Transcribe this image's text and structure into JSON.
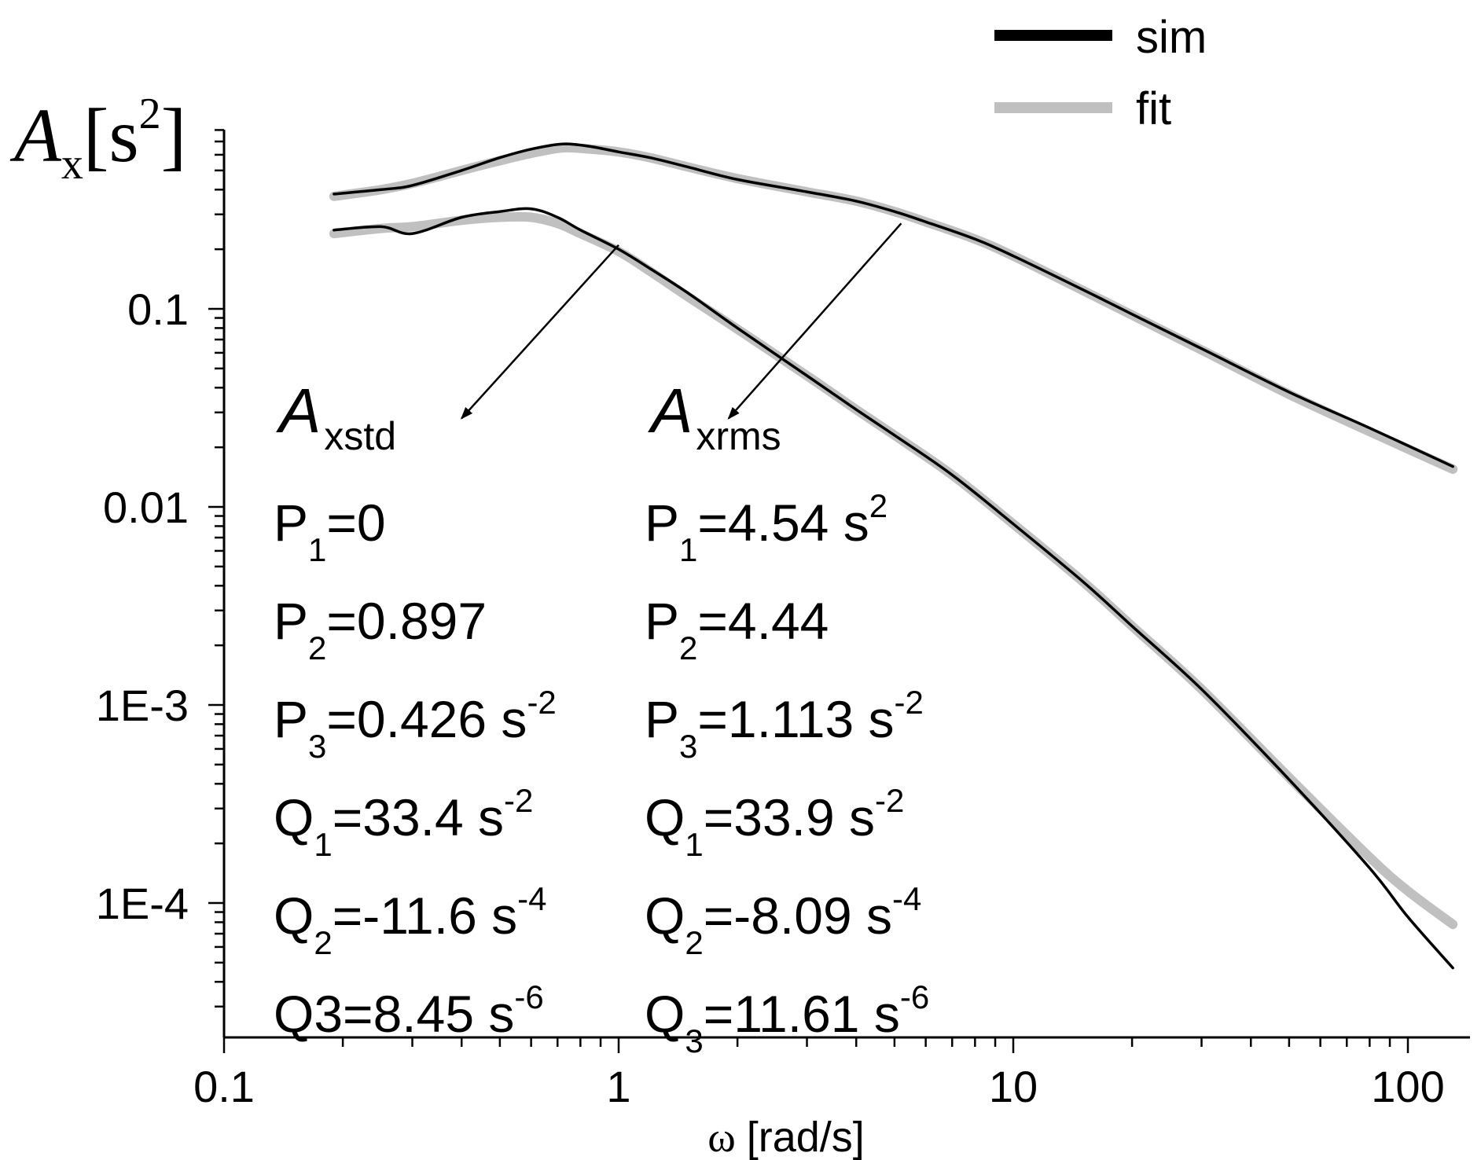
{
  "chart_data": {
    "type": "line",
    "x_scale": "log",
    "y_scale": "log",
    "xlim": [
      0.1,
      140
    ],
    "ylim": [
      2e-05,
      1.2
    ],
    "x_ticks": [
      {
        "value": 0.1,
        "label": "0.1"
      },
      {
        "value": 1,
        "label": "1"
      },
      {
        "value": 10,
        "label": "10"
      },
      {
        "value": 100,
        "label": "100"
      }
    ],
    "y_ticks": [
      {
        "value": 0.1,
        "label": "0.1"
      },
      {
        "value": 0.01,
        "label": "0.01"
      },
      {
        "value": 0.001,
        "label": "1E-3"
      },
      {
        "value": 0.0001,
        "label": "1E-4"
      }
    ],
    "xlabel": {
      "symbol": "ω",
      "text": "[rad/s]"
    },
    "ylabel": {
      "symbol": "A",
      "sub": "x",
      "open": "[s",
      "sup": "2",
      "close": "]"
    },
    "legend": {
      "position": "top-right",
      "entries": [
        {
          "name": "sim",
          "color": "#000000"
        },
        {
          "name": "fit",
          "color": "#c0c0c0"
        }
      ]
    },
    "series": [
      {
        "name": "Axrms sim",
        "kind": "sim",
        "color": "#000000",
        "x": [
          0.19,
          0.25,
          0.3,
          0.4,
          0.5,
          0.6,
          0.72,
          0.85,
          1,
          1.2,
          1.5,
          2,
          3,
          4,
          5,
          6,
          8,
          10,
          15,
          20,
          30,
          50,
          80,
          130
        ],
        "y": [
          0.38,
          0.4,
          0.42,
          0.5,
          0.58,
          0.64,
          0.68,
          0.66,
          0.62,
          0.58,
          0.52,
          0.45,
          0.39,
          0.35,
          0.31,
          0.275,
          0.225,
          0.185,
          0.125,
          0.094,
          0.063,
          0.038,
          0.025,
          0.016
        ]
      },
      {
        "name": "Axrms fit",
        "kind": "fit",
        "color": "#c0c0c0",
        "x": [
          0.19,
          0.25,
          0.3,
          0.4,
          0.5,
          0.6,
          0.72,
          0.85,
          1,
          1.2,
          1.5,
          2,
          3,
          4,
          5,
          6,
          8,
          10,
          15,
          20,
          30,
          50,
          80,
          130
        ],
        "y": [
          0.37,
          0.4,
          0.43,
          0.5,
          0.56,
          0.61,
          0.65,
          0.64,
          0.62,
          0.58,
          0.52,
          0.455,
          0.39,
          0.35,
          0.31,
          0.275,
          0.225,
          0.185,
          0.124,
          0.093,
          0.062,
          0.037,
          0.024,
          0.0155
        ]
      },
      {
        "name": "Axstd sim",
        "kind": "sim",
        "color": "#000000",
        "x": [
          0.19,
          0.25,
          0.3,
          0.4,
          0.5,
          0.6,
          0.7,
          0.8,
          1,
          1.2,
          1.5,
          2,
          3,
          4,
          5,
          7,
          10,
          15,
          20,
          30,
          50,
          80,
          100,
          130
        ],
        "y": [
          0.25,
          0.26,
          0.24,
          0.29,
          0.31,
          0.32,
          0.29,
          0.25,
          0.2,
          0.16,
          0.12,
          0.08,
          0.046,
          0.031,
          0.023,
          0.0145,
          0.0082,
          0.0042,
          0.0025,
          0.0012,
          0.00042,
          0.00015,
          8.5e-05,
          4.7e-05
        ]
      },
      {
        "name": "Axstd fit",
        "kind": "fit",
        "color": "#c0c0c0",
        "x": [
          0.19,
          0.25,
          0.3,
          0.4,
          0.5,
          0.6,
          0.7,
          0.8,
          1,
          1.2,
          1.5,
          2,
          3,
          4,
          5,
          7,
          10,
          15,
          20,
          30,
          50,
          80,
          100,
          130
        ],
        "y": [
          0.24,
          0.255,
          0.26,
          0.28,
          0.29,
          0.29,
          0.27,
          0.24,
          0.195,
          0.155,
          0.115,
          0.079,
          0.046,
          0.031,
          0.023,
          0.0145,
          0.0082,
          0.0042,
          0.0025,
          0.0012,
          0.00043,
          0.00017,
          0.000115,
          7.8e-05
        ]
      }
    ],
    "annotations": [
      {
        "id": "xstd",
        "symbol": "A",
        "sub": "xstd",
        "arrow_from": {
          "x": 1,
          "y": 0.21
        },
        "arrow_to": {
          "x": 0.4,
          "y": 0.028
        },
        "params": [
          {
            "name": "P",
            "sub": "1",
            "value": "=0",
            "sup": ""
          },
          {
            "name": "P",
            "sub": "2",
            "value": "=0.897",
            "sup": ""
          },
          {
            "name": "P",
            "sub": "3",
            "value": "=0.426 s",
            "sup": "-2"
          },
          {
            "name": "Q",
            "sub": "1",
            "value": "=33.4 s",
            "sup": "-2"
          },
          {
            "name": "Q",
            "sub": "2",
            "value": "=-11.6 s",
            "sup": "-4"
          },
          {
            "name": "Q3",
            "sub": "",
            "value": "=8.45 s",
            "sup": "-6"
          }
        ]
      },
      {
        "id": "xrms",
        "symbol": "A",
        "sub": "xrms",
        "arrow_from": {
          "x": 5.2,
          "y": 0.27
        },
        "arrow_to": {
          "x": 1.9,
          "y": 0.028
        },
        "params": [
          {
            "name": "P",
            "sub": "1",
            "value": "=4.54 s",
            "sup": "2"
          },
          {
            "name": "P",
            "sub": "2",
            "value": "=4.44",
            "sup": ""
          },
          {
            "name": "P",
            "sub": "3",
            "value": "=1.113 s",
            "sup": "-2"
          },
          {
            "name": "Q",
            "sub": "1",
            "value": "=33.9 s",
            "sup": "-2"
          },
          {
            "name": "Q",
            "sub": "2",
            "value": "=-8.09 s",
            "sup": "-4"
          },
          {
            "name": "Q",
            "sub": "3",
            "value": "=11.61 s",
            "sup": "-6"
          }
        ]
      }
    ]
  }
}
